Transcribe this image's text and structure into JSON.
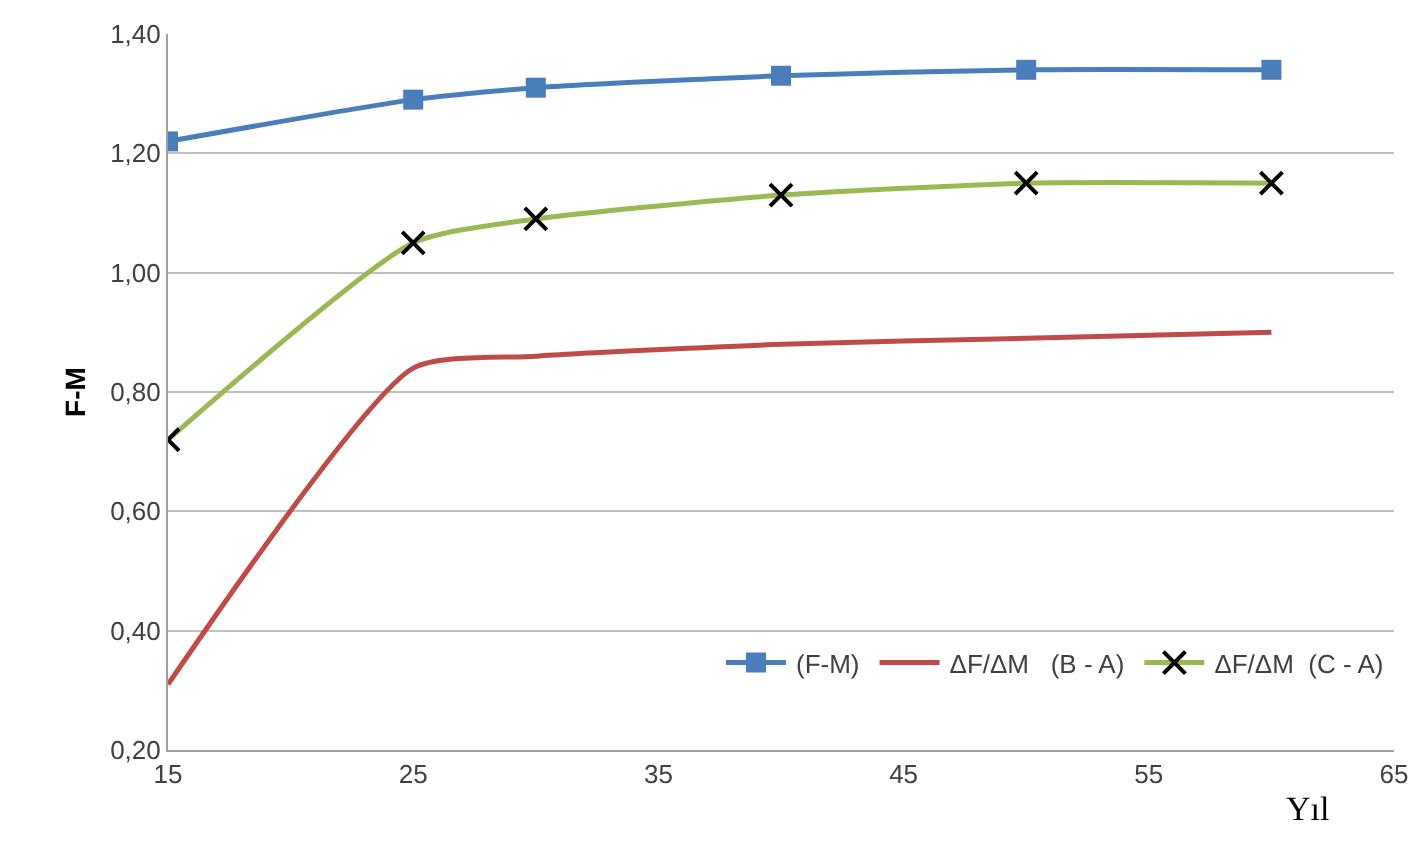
{
  "chart_data": {
    "type": "line",
    "xlabel": "Yıl",
    "ylabel": "F-M",
    "x": [
      15,
      25,
      30,
      40,
      50,
      60
    ],
    "series": [
      {
        "name": "(F-M)",
        "color": "#4a7ebb",
        "marker": "square",
        "values": [
          1.22,
          1.29,
          1.31,
          1.33,
          1.34,
          1.34
        ]
      },
      {
        "name": "ΔF/ΔM   (B - A)",
        "color": "#be4b48",
        "marker": "none",
        "values": [
          0.31,
          0.84,
          0.86,
          0.88,
          0.89,
          0.9
        ]
      },
      {
        "name": "ΔF/ΔM  (C - A)",
        "color": "#98b954",
        "marker": "cross",
        "values": [
          0.72,
          1.05,
          1.09,
          1.13,
          1.15,
          1.15
        ]
      }
    ],
    "xlim": [
      15,
      65
    ],
    "xticks": [
      15,
      25,
      35,
      45,
      55,
      65
    ],
    "ylim": [
      0.2,
      1.4
    ],
    "yticks": [
      {
        "value": 0.2,
        "label": "0,20"
      },
      {
        "value": 0.4,
        "label": "0,40"
      },
      {
        "value": 0.6,
        "label": "0,60"
      },
      {
        "value": 0.8,
        "label": "0,80"
      },
      {
        "value": 1.0,
        "label": "1,00"
      },
      {
        "value": 1.2,
        "label": "1,20"
      },
      {
        "value": 1.4,
        "label": "1,40"
      }
    ],
    "grid": "y",
    "legend": "bottom right"
  }
}
